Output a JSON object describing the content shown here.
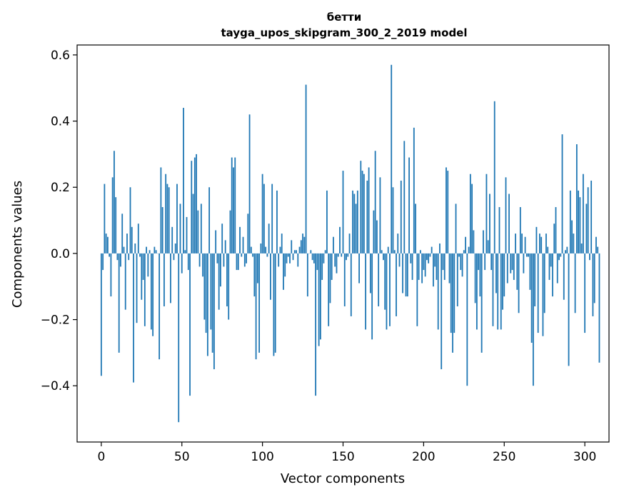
{
  "chart_data": {
    "type": "bar",
    "title": "бетти",
    "subtitle": "tayga_upos_skipgram_300_2_2019 model",
    "xlabel": "Vector components",
    "ylabel": "Components values",
    "xlim": [
      -15,
      315
    ],
    "ylim": [
      -0.57,
      0.63
    ],
    "xticks": [
      0,
      50,
      100,
      150,
      200,
      250,
      300
    ],
    "xtick_labels": [
      "0",
      "50",
      "100",
      "150",
      "200",
      "250",
      "300"
    ],
    "yticks": [
      -0.4,
      -0.2,
      0.0,
      0.2,
      0.4,
      0.6
    ],
    "ytick_labels": [
      "−0.4",
      "−0.2",
      "0.0",
      "0.2",
      "0.4",
      "0.6"
    ],
    "grid": false,
    "color": "#1f77b4",
    "values": [
      -0.37,
      -0.05,
      0.21,
      0.06,
      0.05,
      -0.01,
      -0.13,
      0.23,
      0.31,
      0.17,
      -0.02,
      -0.3,
      -0.04,
      0.12,
      0.02,
      -0.17,
      0.06,
      -0.02,
      0.2,
      0.08,
      -0.39,
      0.03,
      -0.21,
      0.09,
      -0.01,
      -0.14,
      -0.08,
      -0.22,
      0.02,
      -0.07,
      0.01,
      -0.23,
      -0.25,
      0.02,
      0.01,
      0.0,
      -0.32,
      0.26,
      0.14,
      -0.16,
      0.24,
      0.21,
      0.2,
      -0.15,
      0.08,
      -0.02,
      0.03,
      0.21,
      -0.51,
      0.15,
      -0.06,
      0.44,
      0.01,
      0.11,
      -0.05,
      -0.43,
      0.28,
      0.18,
      0.29,
      0.3,
      0.13,
      -0.04,
      0.15,
      -0.07,
      -0.2,
      -0.24,
      -0.31,
      0.2,
      -0.23,
      -0.3,
      -0.35,
      0.07,
      -0.03,
      -0.17,
      -0.1,
      0.09,
      -0.04,
      0.04,
      -0.16,
      -0.2,
      0.13,
      0.29,
      0.26,
      0.29,
      -0.05,
      -0.05,
      0.08,
      -0.01,
      0.05,
      -0.04,
      -0.03,
      0.12,
      0.42,
      0.02,
      -0.01,
      -0.13,
      -0.32,
      -0.09,
      -0.3,
      0.03,
      0.24,
      0.21,
      0.02,
      -0.01,
      0.09,
      -0.14,
      0.21,
      -0.31,
      -0.3,
      0.19,
      -0.04,
      0.02,
      0.06,
      -0.11,
      -0.07,
      -0.03,
      -0.01,
      -0.03,
      0.04,
      -0.02,
      0.01,
      0.01,
      -0.04,
      0.02,
      0.04,
      0.06,
      0.05,
      0.51,
      -0.13,
      0.0,
      0.01,
      -0.02,
      -0.03,
      -0.43,
      -0.05,
      -0.28,
      -0.26,
      -0.08,
      -0.03,
      0.01,
      0.19,
      -0.22,
      -0.15,
      -0.08,
      0.05,
      -0.04,
      -0.06,
      -0.01,
      0.08,
      -0.01,
      0.25,
      -0.16,
      -0.02,
      -0.01,
      0.06,
      -0.19,
      0.19,
      0.18,
      0.15,
      0.19,
      -0.09,
      0.28,
      0.25,
      0.24,
      -0.23,
      0.22,
      0.26,
      -0.12,
      -0.26,
      0.13,
      0.31,
      0.1,
      -0.16,
      0.23,
      0.01,
      -0.02,
      -0.17,
      -0.23,
      0.02,
      -0.22,
      0.57,
      0.2,
      0.01,
      -0.19,
      0.06,
      -0.04,
      0.22,
      -0.12,
      0.34,
      -0.13,
      -0.13,
      0.29,
      -0.03,
      -0.08,
      0.38,
      0.15,
      -0.22,
      -0.08,
      0.01,
      -0.09,
      -0.05,
      -0.07,
      -0.02,
      -0.03,
      -0.01,
      0.02,
      -0.1,
      -0.04,
      -0.08,
      -0.23,
      0.03,
      -0.35,
      -0.05,
      -0.08,
      0.26,
      0.25,
      -0.09,
      -0.24,
      -0.3,
      -0.24,
      0.15,
      -0.16,
      -0.01,
      -0.05,
      -0.07,
      0.01,
      0.05,
      -0.4,
      0.02,
      0.24,
      0.21,
      0.07,
      -0.15,
      -0.23,
      -0.05,
      -0.13,
      -0.3,
      0.07,
      -0.05,
      0.24,
      0.04,
      0.18,
      -0.05,
      -0.22,
      0.46,
      -0.12,
      -0.23,
      0.14,
      -0.23,
      -0.17,
      -0.13,
      0.23,
      -0.09,
      0.18,
      -0.06,
      -0.05,
      -0.08,
      0.06,
      -0.11,
      -0.18,
      0.14,
      0.06,
      -0.06,
      0.05,
      -0.01,
      -0.01,
      -0.11,
      -0.27,
      -0.4,
      -0.16,
      0.08,
      -0.24,
      0.06,
      0.05,
      -0.25,
      -0.18,
      0.06,
      0.02,
      -0.08,
      -0.04,
      -0.13,
      0.09,
      0.14,
      -0.09,
      -0.02,
      -0.01,
      0.36,
      -0.14,
      0.01,
      0.02,
      -0.34,
      0.19,
      0.1,
      0.06,
      -0.18,
      0.33,
      0.19,
      0.17,
      0.03,
      0.24,
      -0.24,
      0.15,
      0.2,
      -0.02,
      0.22,
      -0.19,
      -0.15,
      0.05,
      0.02,
      -0.33
    ]
  }
}
